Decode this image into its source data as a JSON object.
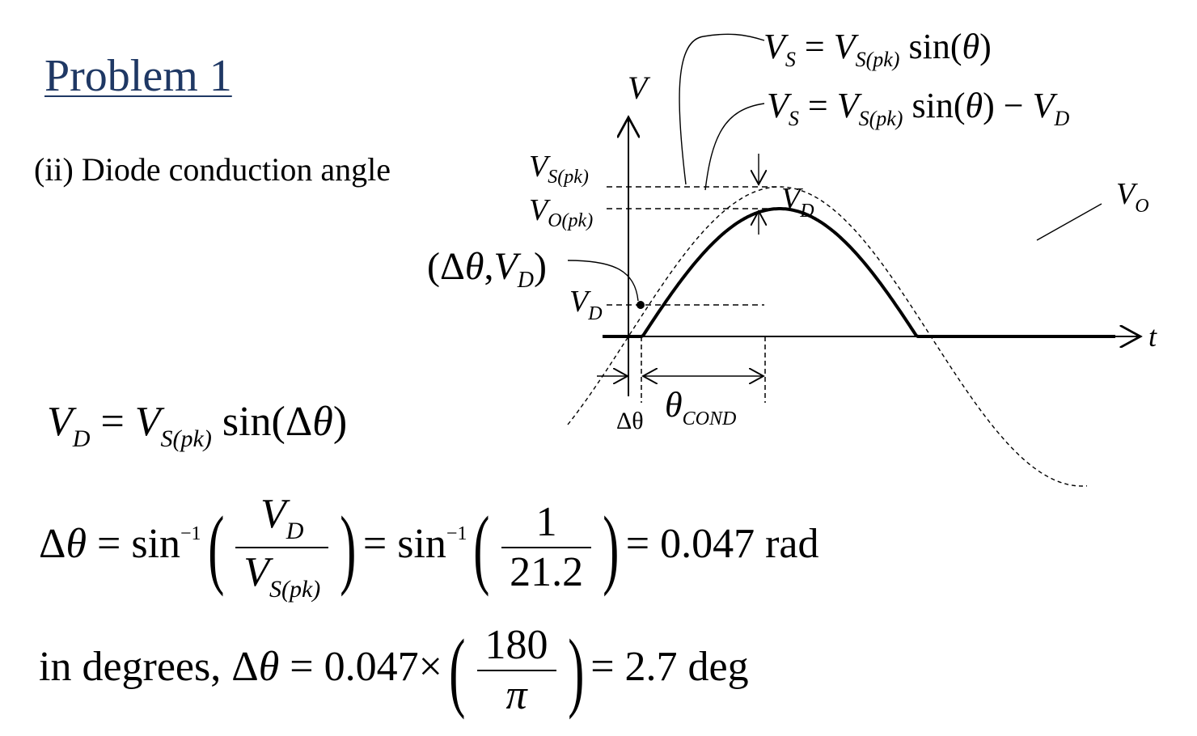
{
  "title": "Problem 1",
  "subtitle": "(ii) Diode conduction angle",
  "diagram": {
    "v_axis": "V",
    "t_axis": "t",
    "vs_formula": "V_S = V_S(pk) sin(θ)",
    "vs_minus_vd_formula": "V_S = V_S(pk) sin(θ) − V_D",
    "vs_pk_label": "V_S(pk)",
    "vo_pk_label": "V_O(pk)",
    "vd_label_right": "V_D",
    "vo_label": "V_O",
    "point_label": "(Δθ,V_D)",
    "vd_label_left": "V_D",
    "delta_theta_label": "Δθ",
    "theta_cond_label": "θ_COND"
  },
  "equations": {
    "eq1": "V_D = V_S(pk) sin(Δθ)",
    "eq2": "Δθ = sin⁻¹(V_D / V_S(pk)) = sin⁻¹(1 / 21.2) = 0.047 rad",
    "eq2_numerator": "1",
    "eq2_denominator": "21.2",
    "eq2_result": "= 0.047 rad",
    "eq3_prefix": "in degrees,",
    "eq3": "Δθ = 0.047 × (180 / π) = 2.7 deg",
    "eq3_value": "0.047",
    "eq3_numerator": "180",
    "eq3_denominator": "π",
    "eq3_result": "= 2.7 deg"
  }
}
